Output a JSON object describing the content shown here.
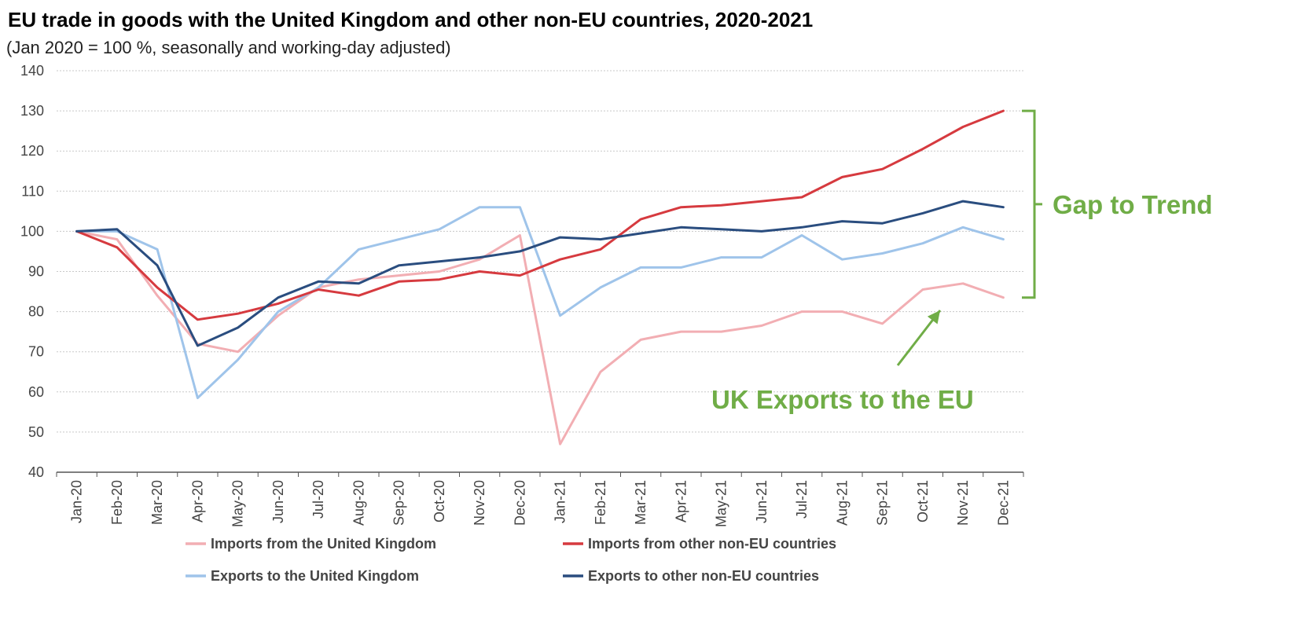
{
  "chart_data": {
    "type": "line",
    "title": "EU trade in goods with the United Kingdom and other non-EU countries, 2020-2021",
    "subtitle": "(Jan 2020 = 100 %, seasonally and working-day adjusted)",
    "ylim": [
      40,
      140
    ],
    "yticks": [
      40,
      50,
      60,
      70,
      80,
      90,
      100,
      110,
      120,
      130,
      140
    ],
    "grid": true,
    "legend_position": "bottom",
    "categories": [
      "Jan-20",
      "Feb-20",
      "Mar-20",
      "Apr-20",
      "May-20",
      "Jun-20",
      "Jul-20",
      "Aug-20",
      "Sep-20",
      "Oct-20",
      "Nov-20",
      "Dec-20",
      "Jan-21",
      "Feb-21",
      "Mar-21",
      "Apr-21",
      "May-21",
      "Jun-21",
      "Jul-21",
      "Aug-21",
      "Sep-21",
      "Oct-21",
      "Nov-21",
      "Dec-21"
    ],
    "series": [
      {
        "name": "Imports from the United Kingdom",
        "color": "#f2aeb3",
        "values": [
          100,
          98,
          84,
          72,
          70,
          79,
          86,
          88,
          89,
          90,
          93,
          99,
          47,
          65,
          73,
          75,
          75,
          76.5,
          80,
          80,
          77,
          85.5,
          87,
          83.5
        ]
      },
      {
        "name": "Imports from other non-EU countries",
        "color": "#d63a3f",
        "values": [
          100,
          96,
          86,
          78,
          79.5,
          82,
          85.5,
          84,
          87.5,
          88,
          90,
          89,
          93,
          95.5,
          103,
          106,
          106.5,
          107.5,
          108.5,
          113.5,
          115.5,
          120.5,
          126,
          130
        ]
      },
      {
        "name": "Exports to the United Kingdom",
        "color": "#9fc4ea",
        "values": [
          100,
          100,
          95.5,
          58.5,
          68,
          80,
          86,
          95.5,
          98,
          100.5,
          106,
          106,
          79,
          86,
          91,
          91,
          93.5,
          93.5,
          99,
          93,
          94.5,
          97,
          101,
          98
        ]
      },
      {
        "name": "Exports to other non-EU countries",
        "color": "#2a4d7f",
        "values": [
          100,
          100.5,
          91.5,
          71.5,
          76,
          83.5,
          87.5,
          87,
          91.5,
          92.5,
          93.5,
          95,
          98.5,
          98,
          99.5,
          101,
          100.5,
          100,
          101,
          102.5,
          102,
          104.5,
          107.5,
          106
        ]
      }
    ],
    "annotations": [
      {
        "text": "Gap to Trend",
        "color": "#70ad47",
        "spans": [
          83.5,
          130
        ]
      },
      {
        "text": "UK Exports to the EU",
        "color": "#70ad47",
        "points_to": "Imports from the United Kingdom"
      }
    ]
  }
}
